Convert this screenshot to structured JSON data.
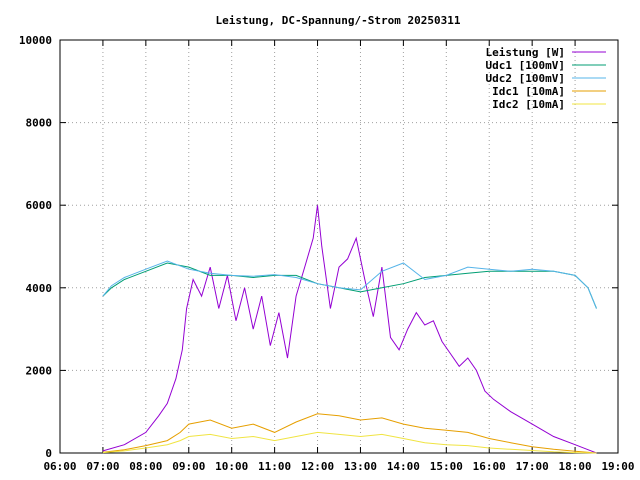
{
  "chart_data": {
    "type": "line",
    "title": "Leistung, DC-Spannung/-Strom 20250311",
    "xlabel": "",
    "ylabel": "",
    "xlim": [
      6,
      19
    ],
    "ylim": [
      0,
      10000
    ],
    "x_ticks": [
      "06:00",
      "07:00",
      "08:00",
      "09:00",
      "10:00",
      "11:00",
      "12:00",
      "13:00",
      "14:00",
      "15:00",
      "16:00",
      "17:00",
      "18:00",
      "19:00"
    ],
    "y_ticks": [
      "0",
      "2000",
      "4000",
      "6000",
      "8000",
      "10000"
    ],
    "grid": true,
    "legend_position": "top-right",
    "series": [
      {
        "name": "Leistung [W]",
        "color": "#9400d3",
        "x": [
          7.0,
          7.5,
          8.0,
          8.3,
          8.5,
          8.7,
          8.85,
          8.95,
          9.1,
          9.3,
          9.5,
          9.7,
          9.9,
          10.1,
          10.3,
          10.5,
          10.7,
          10.9,
          11.1,
          11.3,
          11.5,
          11.7,
          11.9,
          12.0,
          12.1,
          12.3,
          12.5,
          12.7,
          12.9,
          13.1,
          13.3,
          13.5,
          13.7,
          13.9,
          14.1,
          14.3,
          14.5,
          14.7,
          14.9,
          15.1,
          15.3,
          15.5,
          15.7,
          15.9,
          16.1,
          16.5,
          17.0,
          17.5,
          18.0,
          18.3,
          18.5
        ],
        "values": [
          50,
          200,
          500,
          900,
          1200,
          1800,
          2500,
          3500,
          4200,
          3800,
          4500,
          3500,
          4300,
          3200,
          4000,
          3000,
          3800,
          2600,
          3400,
          2300,
          3800,
          4500,
          5200,
          6000,
          5000,
          3500,
          4500,
          4700,
          5200,
          4200,
          3300,
          4500,
          2800,
          2500,
          3000,
          3400,
          3100,
          3200,
          2700,
          2400,
          2100,
          2300,
          2000,
          1500,
          1300,
          1000,
          700,
          400,
          200,
          80,
          0
        ]
      },
      {
        "name": "Udc1 [100mV]",
        "color": "#009e73",
        "x": [
          7.0,
          7.2,
          7.5,
          8.0,
          8.5,
          9.0,
          9.5,
          10.0,
          10.5,
          11.0,
          11.5,
          12.0,
          12.5,
          13.0,
          13.5,
          14.0,
          14.5,
          15.0,
          15.5,
          16.0,
          16.5,
          17.0,
          17.5,
          18.0,
          18.3,
          18.5
        ],
        "values": [
          3800,
          4000,
          4200,
          4400,
          4600,
          4500,
          4300,
          4300,
          4250,
          4300,
          4300,
          4100,
          4000,
          3900,
          4000,
          4100,
          4250,
          4300,
          4350,
          4400,
          4400,
          4400,
          4400,
          4300,
          4000,
          3500
        ]
      },
      {
        "name": "Udc2 [100mV]",
        "color": "#56b4e9",
        "x": [
          7.0,
          7.2,
          7.5,
          8.0,
          8.5,
          9.0,
          9.5,
          10.0,
          10.5,
          11.0,
          11.5,
          12.0,
          12.5,
          13.0,
          13.5,
          14.0,
          14.5,
          15.0,
          15.5,
          16.0,
          16.5,
          17.0,
          17.5,
          18.0,
          18.3,
          18.5
        ],
        "values": [
          3800,
          4050,
          4250,
          4450,
          4650,
          4450,
          4350,
          4300,
          4280,
          4320,
          4250,
          4100,
          4000,
          3950,
          4400,
          4600,
          4200,
          4300,
          4500,
          4450,
          4400,
          4450,
          4400,
          4300,
          4000,
          3500
        ]
      },
      {
        "name": "Idc1 [10mA]",
        "color": "#e69f00",
        "x": [
          7.0,
          7.5,
          8.0,
          8.5,
          8.8,
          9.0,
          9.5,
          10.0,
          10.5,
          11.0,
          11.5,
          12.0,
          12.5,
          13.0,
          13.5,
          14.0,
          14.5,
          15.0,
          15.5,
          16.0,
          16.5,
          17.0,
          17.5,
          18.0,
          18.5
        ],
        "values": [
          20,
          80,
          180,
          300,
          500,
          700,
          800,
          600,
          700,
          500,
          750,
          950,
          900,
          800,
          850,
          700,
          600,
          550,
          500,
          350,
          250,
          150,
          90,
          40,
          0
        ]
      },
      {
        "name": "Idc2 [10mA]",
        "color": "#f0e442",
        "x": [
          7.0,
          7.5,
          8.0,
          8.5,
          8.8,
          9.0,
          9.5,
          10.0,
          10.5,
          11.0,
          11.5,
          12.0,
          12.5,
          13.0,
          13.5,
          14.0,
          14.5,
          15.0,
          15.5,
          16.0,
          16.5,
          17.0,
          17.5,
          18.0,
          18.5
        ],
        "values": [
          10,
          50,
          120,
          200,
          300,
          400,
          450,
          350,
          400,
          300,
          400,
          500,
          450,
          400,
          450,
          350,
          250,
          200,
          180,
          120,
          90,
          60,
          30,
          10,
          0
        ]
      }
    ]
  }
}
